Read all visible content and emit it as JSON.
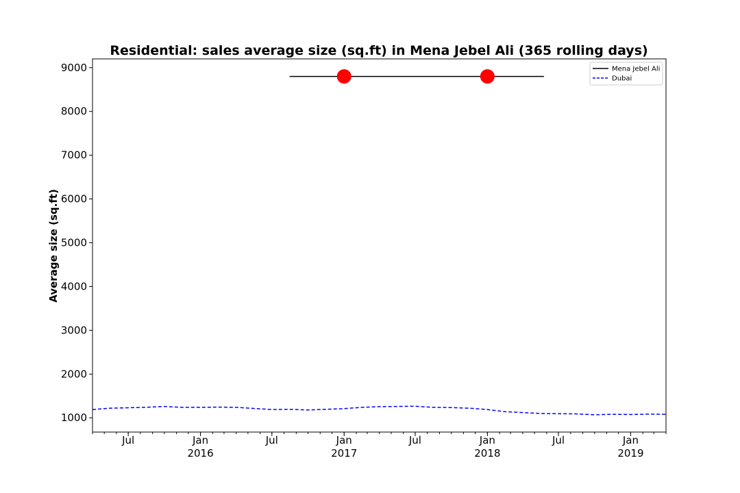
{
  "chart_data": {
    "type": "line",
    "title": "Residential: sales average size (sq.ft) in Mena Jebel Ali (365 rolling days)",
    "ylabel": "Average size (sq.ft)",
    "xlabel": "",
    "ylim": [
      675,
      9200
    ],
    "xlim": [
      "2015-04-01",
      "2019-04-01"
    ],
    "yticks": [
      1000,
      2000,
      3000,
      4000,
      5000,
      6000,
      7000,
      8000,
      9000
    ],
    "xticks": [
      {
        "date": "2015-07-01",
        "label": "Jul"
      },
      {
        "date": "2016-01-01",
        "label": "Jan\n2016"
      },
      {
        "date": "2016-07-01",
        "label": "Jul"
      },
      {
        "date": "2017-01-01",
        "label": "Jan\n2017"
      },
      {
        "date": "2017-07-01",
        "label": "Jul"
      },
      {
        "date": "2018-01-01",
        "label": "Jan\n2018"
      },
      {
        "date": "2018-07-01",
        "label": "Jul"
      },
      {
        "date": "2019-01-01",
        "label": "Jan\n2019"
      }
    ],
    "legend_position": "top-right",
    "grid": false,
    "series": [
      {
        "name": "Mena Jebel Ali",
        "color": "#000000",
        "style": "solid",
        "points": [
          {
            "x": "2016-08-15",
            "y": 8800
          },
          {
            "x": "2018-05-25",
            "y": 8800
          }
        ],
        "markers": [
          {
            "x": "2017-01-01",
            "y": 8800,
            "color": "#ff0000"
          },
          {
            "x": "2018-01-01",
            "y": 8800,
            "color": "#ff0000"
          }
        ]
      },
      {
        "name": "Dubai",
        "color": "#0000ff",
        "style": "dashed",
        "points": [
          {
            "x": "2015-04-01",
            "y": 1190
          },
          {
            "x": "2015-05-15",
            "y": 1220
          },
          {
            "x": "2015-07-01",
            "y": 1230
          },
          {
            "x": "2015-08-15",
            "y": 1240
          },
          {
            "x": "2015-10-01",
            "y": 1260
          },
          {
            "x": "2015-11-15",
            "y": 1240
          },
          {
            "x": "2016-01-01",
            "y": 1240
          },
          {
            "x": "2016-02-15",
            "y": 1245
          },
          {
            "x": "2016-04-01",
            "y": 1240
          },
          {
            "x": "2016-05-15",
            "y": 1215
          },
          {
            "x": "2016-07-01",
            "y": 1190
          },
          {
            "x": "2016-08-15",
            "y": 1195
          },
          {
            "x": "2016-10-01",
            "y": 1180
          },
          {
            "x": "2016-11-15",
            "y": 1195
          },
          {
            "x": "2017-01-01",
            "y": 1210
          },
          {
            "x": "2017-02-15",
            "y": 1240
          },
          {
            "x": "2017-04-01",
            "y": 1255
          },
          {
            "x": "2017-05-15",
            "y": 1260
          },
          {
            "x": "2017-07-01",
            "y": 1265
          },
          {
            "x": "2017-08-15",
            "y": 1240
          },
          {
            "x": "2017-10-01",
            "y": 1235
          },
          {
            "x": "2017-11-15",
            "y": 1220
          },
          {
            "x": "2018-01-01",
            "y": 1190
          },
          {
            "x": "2018-02-15",
            "y": 1140
          },
          {
            "x": "2018-04-01",
            "y": 1120
          },
          {
            "x": "2018-05-15",
            "y": 1100
          },
          {
            "x": "2018-07-01",
            "y": 1095
          },
          {
            "x": "2018-08-15",
            "y": 1090
          },
          {
            "x": "2018-10-01",
            "y": 1070
          },
          {
            "x": "2018-11-15",
            "y": 1080
          },
          {
            "x": "2019-01-01",
            "y": 1075
          },
          {
            "x": "2019-02-15",
            "y": 1085
          },
          {
            "x": "2019-04-01",
            "y": 1080
          }
        ]
      }
    ]
  }
}
